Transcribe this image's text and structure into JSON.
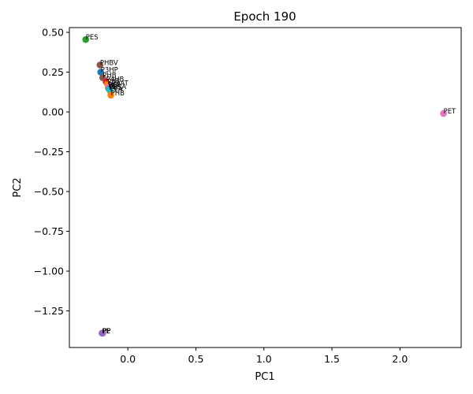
{
  "chart_data": {
    "type": "scatter",
    "title": "Epoch 190",
    "xlabel": "PC1",
    "ylabel": "PC2",
    "xlim": [
      -0.43,
      2.45
    ],
    "ylim": [
      -1.48,
      0.53
    ],
    "xticks": [
      0.0,
      0.5,
      1.0,
      1.5,
      2.0
    ],
    "xtick_labels": [
      "0.0",
      "0.5",
      "1.0",
      "1.5",
      "2.0"
    ],
    "yticks": [
      0.5,
      0.25,
      0.0,
      -0.25,
      -0.5,
      -0.75,
      -1.0,
      -1.25
    ],
    "ytick_labels": [
      "0.50",
      "0.25",
      "0.00",
      "−0.25",
      "−0.50",
      "−0.75",
      "−1.00",
      "−1.25"
    ],
    "grid": false,
    "legend": "none",
    "points": [
      {
        "label": "PES",
        "x": -0.31,
        "y": 0.455,
        "color": "#2ca02c"
      },
      {
        "label": "PHBV",
        "x": -0.205,
        "y": 0.295,
        "color": "#8c564b"
      },
      {
        "label": "P3HP",
        "x": -0.2,
        "y": 0.25,
        "color": "#1f77b4"
      },
      {
        "label": "PHB",
        "x": -0.185,
        "y": 0.215,
        "color": "#8c564b"
      },
      {
        "label": "P4HB",
        "x": -0.16,
        "y": 0.19,
        "color": "#d62728"
      },
      {
        "label": "PBS",
        "x": -0.15,
        "y": 0.175,
        "color": "#ff7f0e"
      },
      {
        "label": "PBAT",
        "x": -0.12,
        "y": 0.165,
        "color": "#9467bd"
      },
      {
        "label": "PCL",
        "x": -0.145,
        "y": 0.155,
        "color": "#e377c2"
      },
      {
        "label": "PBSA",
        "x": -0.14,
        "y": 0.145,
        "color": "#7f7f7f"
      },
      {
        "label": "PLA",
        "x": -0.13,
        "y": 0.13,
        "color": "#bcbd22"
      },
      {
        "label": "PBS",
        "x": -0.135,
        "y": 0.14,
        "color": "#17becf"
      },
      {
        "label": "PHB",
        "x": -0.125,
        "y": 0.105,
        "color": "#ff7f0e"
      },
      {
        "label": "PET",
        "x": 2.32,
        "y": -0.01,
        "color": "#e377c2"
      },
      {
        "label": "PE",
        "x": -0.19,
        "y": -1.39,
        "color": "#9467bd"
      },
      {
        "label": "PP",
        "x": -0.185,
        "y": -1.39,
        "color": "#9467bd"
      }
    ]
  }
}
